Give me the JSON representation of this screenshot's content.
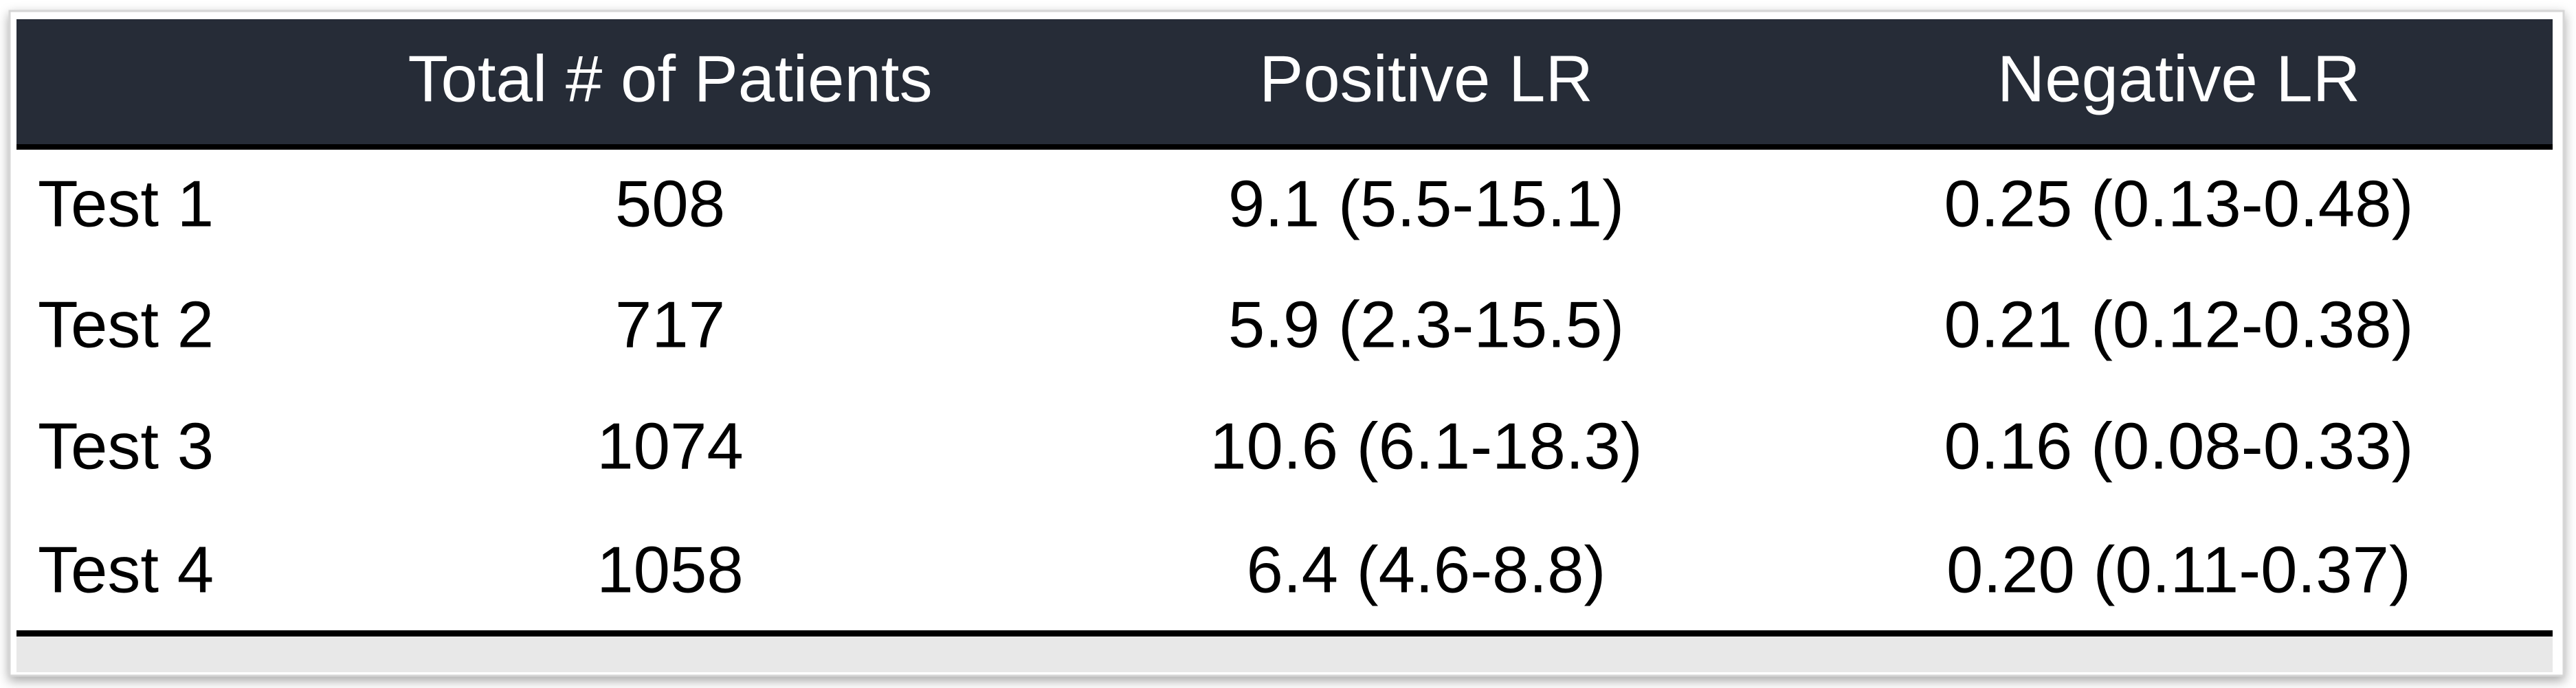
{
  "table": {
    "headers": [
      "Total # of Patients",
      "Positive LR",
      "Negative LR"
    ],
    "rows": [
      [
        "Test 1",
        "508",
        "9.1 (5.5-15.1)",
        "0.25 (0.13-0.48)"
      ],
      [
        "Test 2",
        "717",
        "5.9 (2.3-15.5)",
        "0.21 (0.12-0.38)"
      ],
      [
        "Test 3",
        "1074",
        "10.6 (6.1-18.3)",
        "0.16 (0.08-0.33)"
      ],
      [
        "Test 4",
        "1058",
        "6.4 (4.6-8.8)",
        "0.20 (0.11-0.37)"
      ]
    ]
  }
}
